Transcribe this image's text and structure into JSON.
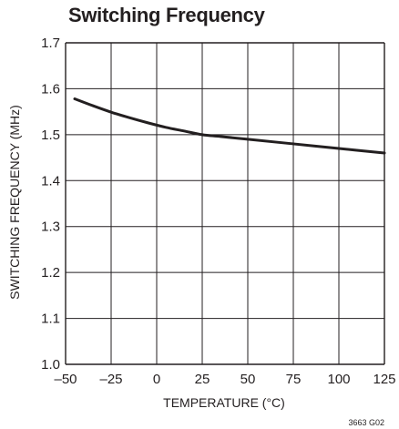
{
  "chart_data": {
    "type": "line",
    "title": "Switching Frequency",
    "xlabel": "TEMPERATURE (°C)",
    "ylabel": "SWITCHING FREQUENCY (MHz)",
    "xlim": [
      -50,
      125
    ],
    "ylim": [
      1.0,
      1.7
    ],
    "x_ticks": [
      "–50",
      "–25",
      "0",
      "25",
      "50",
      "75",
      "100",
      "125"
    ],
    "y_ticks": [
      "1.0",
      "1.1",
      "1.2",
      "1.3",
      "1.4",
      "1.5",
      "1.6",
      "1.7"
    ],
    "grid": true,
    "series": [
      {
        "x": [
          -45,
          -35,
          -25,
          -15,
          -5,
          5,
          15,
          25,
          35,
          50,
          75,
          100,
          125
        ],
        "y": [
          1.578,
          1.563,
          1.549,
          1.537,
          1.526,
          1.516,
          1.508,
          1.5,
          1.496,
          1.49,
          1.48,
          1.47,
          1.46
        ]
      }
    ],
    "figure_code": "3663 G02",
    "colors": {
      "line": "#231f20",
      "grid": "#231f20"
    }
  }
}
